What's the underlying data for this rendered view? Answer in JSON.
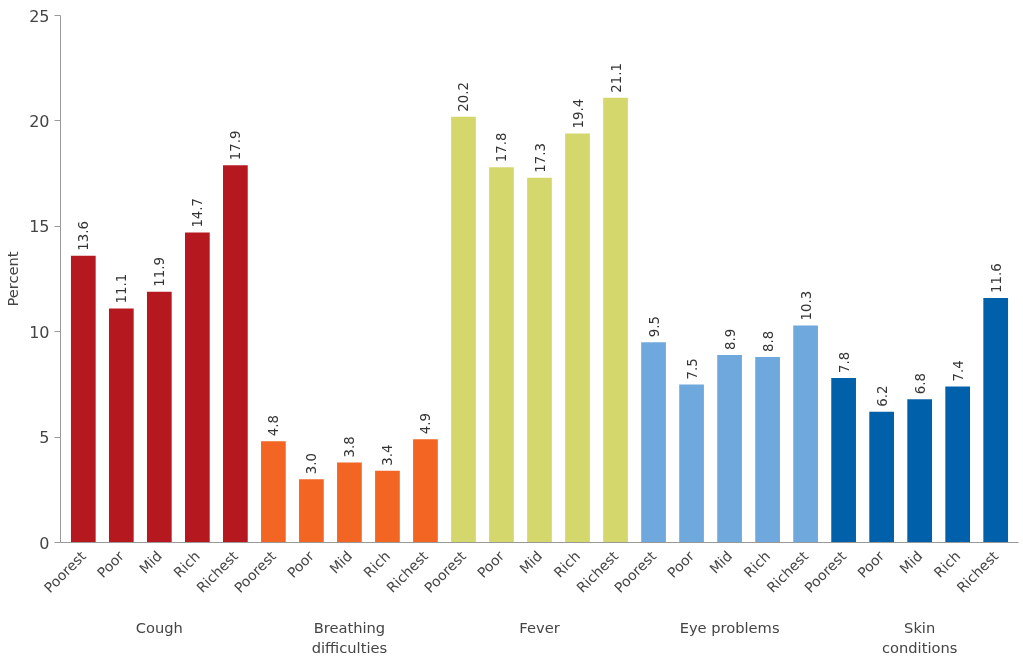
{
  "chart_data": {
    "type": "bar",
    "ylabel": "Percent",
    "categories": [
      "Poorest",
      "Poor",
      "Mid",
      "Rich",
      "Richest",
      "Poorest",
      "Poor",
      "Mid",
      "Rich",
      "Richest",
      "Poorest",
      "Poor",
      "Mid",
      "Rich",
      "Richest",
      "Poorest",
      "Poor",
      "Mid",
      "Rich",
      "Richest",
      "Poorest",
      "Poor",
      "Mid",
      "Rich",
      "Richest"
    ],
    "series": [
      {
        "color": "#b5191f",
        "values": [
          13.6,
          11.1,
          11.9,
          14.7,
          17.9,
          null,
          null,
          null,
          null,
          null,
          null,
          null,
          null,
          null,
          null,
          null,
          null,
          null,
          null,
          null,
          null,
          null,
          null,
          null,
          null
        ],
        "value_labels": [
          "13.6",
          "11.1",
          "11.9",
          "14.7",
          "17.9",
          null,
          null,
          null,
          null,
          null,
          null,
          null,
          null,
          null,
          null,
          null,
          null,
          null,
          null,
          null,
          null,
          null,
          null,
          null,
          null
        ]
      },
      {
        "color": "#f26522",
        "values": [
          null,
          null,
          null,
          null,
          null,
          4.8,
          3.0,
          3.8,
          3.4,
          4.9,
          null,
          null,
          null,
          null,
          null,
          null,
          null,
          null,
          null,
          null,
          null,
          null,
          null,
          null,
          null
        ],
        "value_labels": [
          null,
          null,
          null,
          null,
          null,
          "4.8",
          "3.0",
          "3.8",
          "3.4",
          "4.9",
          null,
          null,
          null,
          null,
          null,
          null,
          null,
          null,
          null,
          null,
          null,
          null,
          null,
          null,
          null
        ]
      },
      {
        "color": "#d4d76b",
        "values": [
          null,
          null,
          null,
          null,
          null,
          null,
          null,
          null,
          null,
          null,
          20.2,
          17.8,
          17.3,
          19.4,
          21.1,
          null,
          null,
          null,
          null,
          null,
          null,
          null,
          null,
          null,
          null
        ],
        "value_labels": [
          null,
          null,
          null,
          null,
          null,
          null,
          null,
          null,
          null,
          null,
          "20.2",
          "17.8",
          "17.3",
          "19.4",
          "21.1",
          null,
          null,
          null,
          null,
          null,
          null,
          null,
          null,
          null,
          null
        ]
      },
      {
        "color": "#6fa8dc",
        "values": [
          null,
          null,
          null,
          null,
          null,
          null,
          null,
          null,
          null,
          null,
          null,
          null,
          null,
          null,
          null,
          9.5,
          7.5,
          8.9,
          8.8,
          10.3,
          null,
          null,
          null,
          null,
          null
        ],
        "value_labels": [
          null,
          null,
          null,
          null,
          null,
          null,
          null,
          null,
          null,
          null,
          null,
          null,
          null,
          null,
          null,
          "9.5",
          "7.5",
          "8.9",
          "8.8",
          "10.3",
          null,
          null,
          null,
          null,
          null
        ]
      },
      {
        "color": "#0060a9",
        "values": [
          null,
          null,
          null,
          null,
          null,
          null,
          null,
          null,
          null,
          null,
          null,
          null,
          null,
          null,
          null,
          null,
          null,
          null,
          null,
          null,
          7.8,
          6.2,
          6.8,
          7.4,
          11.6
        ],
        "value_labels": [
          null,
          null,
          null,
          null,
          null,
          null,
          null,
          null,
          null,
          null,
          null,
          null,
          null,
          null,
          null,
          null,
          null,
          null,
          null,
          null,
          "7.8",
          "6.2",
          "6.8",
          "7.4",
          "11.6"
        ]
      }
    ],
    "annotations": [
      "Cough",
      "Breathing\ndifficulties",
      "Fever",
      "Eye problems",
      "Skin\nconditions"
    ],
    "ylim": [
      0,
      25
    ],
    "yticks": [
      0,
      5,
      10,
      15,
      20,
      25
    ],
    "grid": false
  }
}
